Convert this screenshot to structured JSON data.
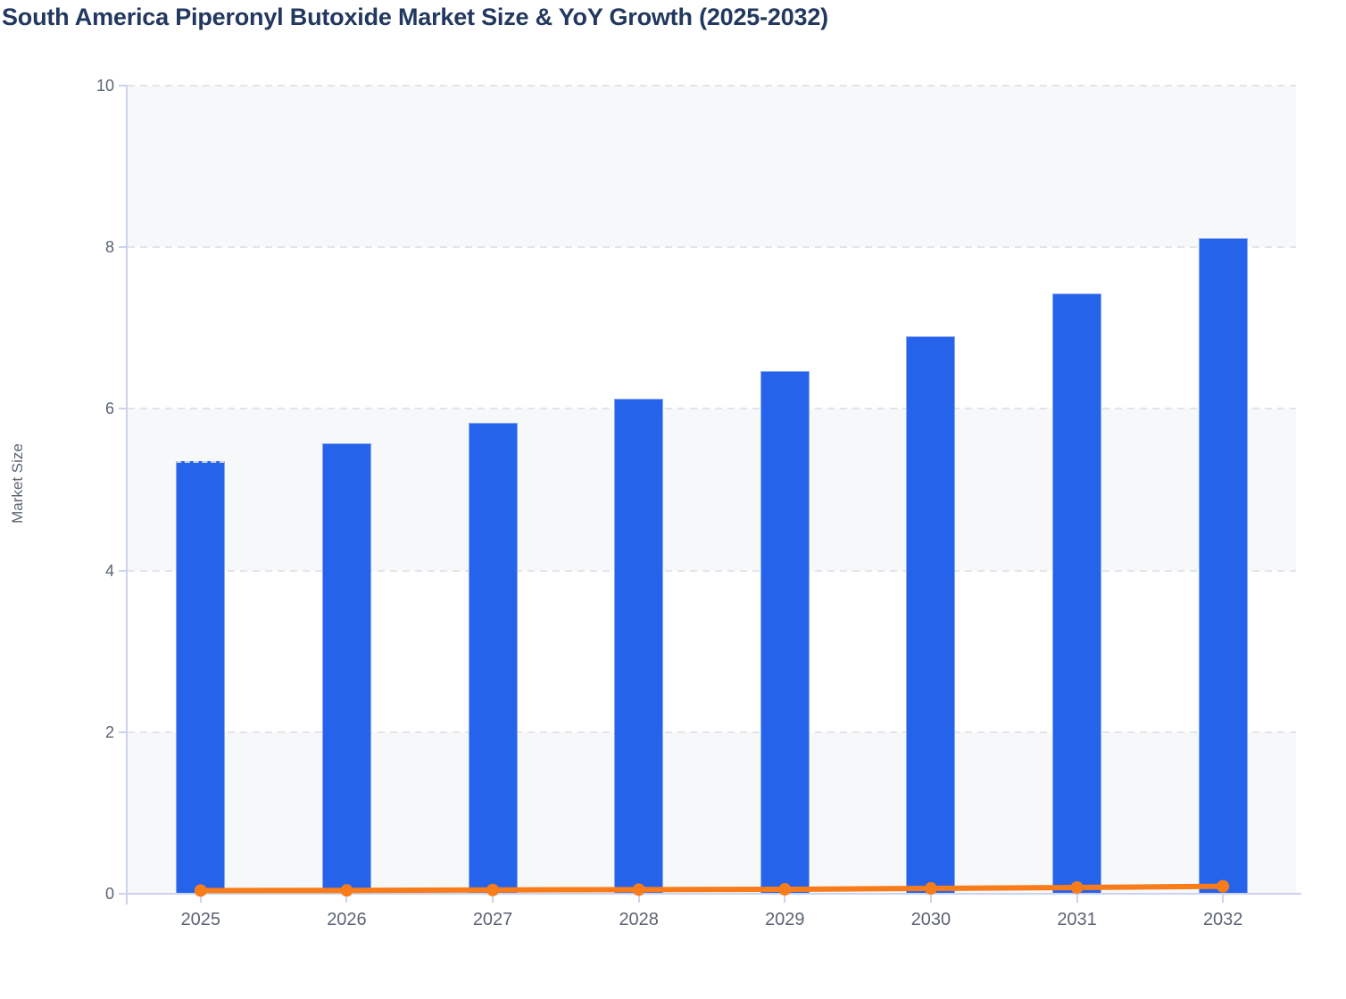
{
  "chart_data": {
    "type": "combo",
    "title": "South America Piperonyl Butoxide Market Size & YoY Growth (2025-2032)",
    "ylabel": "Market Size",
    "xlabel": "",
    "categories": [
      "2025",
      "2026",
      "2027",
      "2028",
      "2029",
      "2030",
      "2031",
      "2032"
    ],
    "series": [
      {
        "name": "Market Size",
        "type": "bar",
        "color": "#2563eb",
        "border_color": "rgba(158,180,240,0.85)",
        "values": [
          5.35,
          5.57,
          5.83,
          6.13,
          6.47,
          6.9,
          7.43,
          8.11
        ],
        "first_bar_dashed_top": true
      },
      {
        "name": "YoY Growth",
        "type": "line",
        "color": "#f87c1a",
        "marker": "circle",
        "values": [
          0.04,
          0.041,
          0.047,
          0.051,
          0.055,
          0.066,
          0.077,
          0.092
        ]
      }
    ],
    "ylim": [
      0,
      10
    ],
    "yticks": [
      0,
      2,
      4,
      6,
      8,
      10
    ],
    "legend": "none",
    "grid": {
      "horizontal_dashed_gridlines": true,
      "alternating_split_bands": true,
      "band_color": "#f7f8fa",
      "gridline_color": "#e2e4ea",
      "axis_line_color": "#ccd3ee",
      "tick_label_color": "#5b6474",
      "title_color": "#22385f"
    }
  }
}
